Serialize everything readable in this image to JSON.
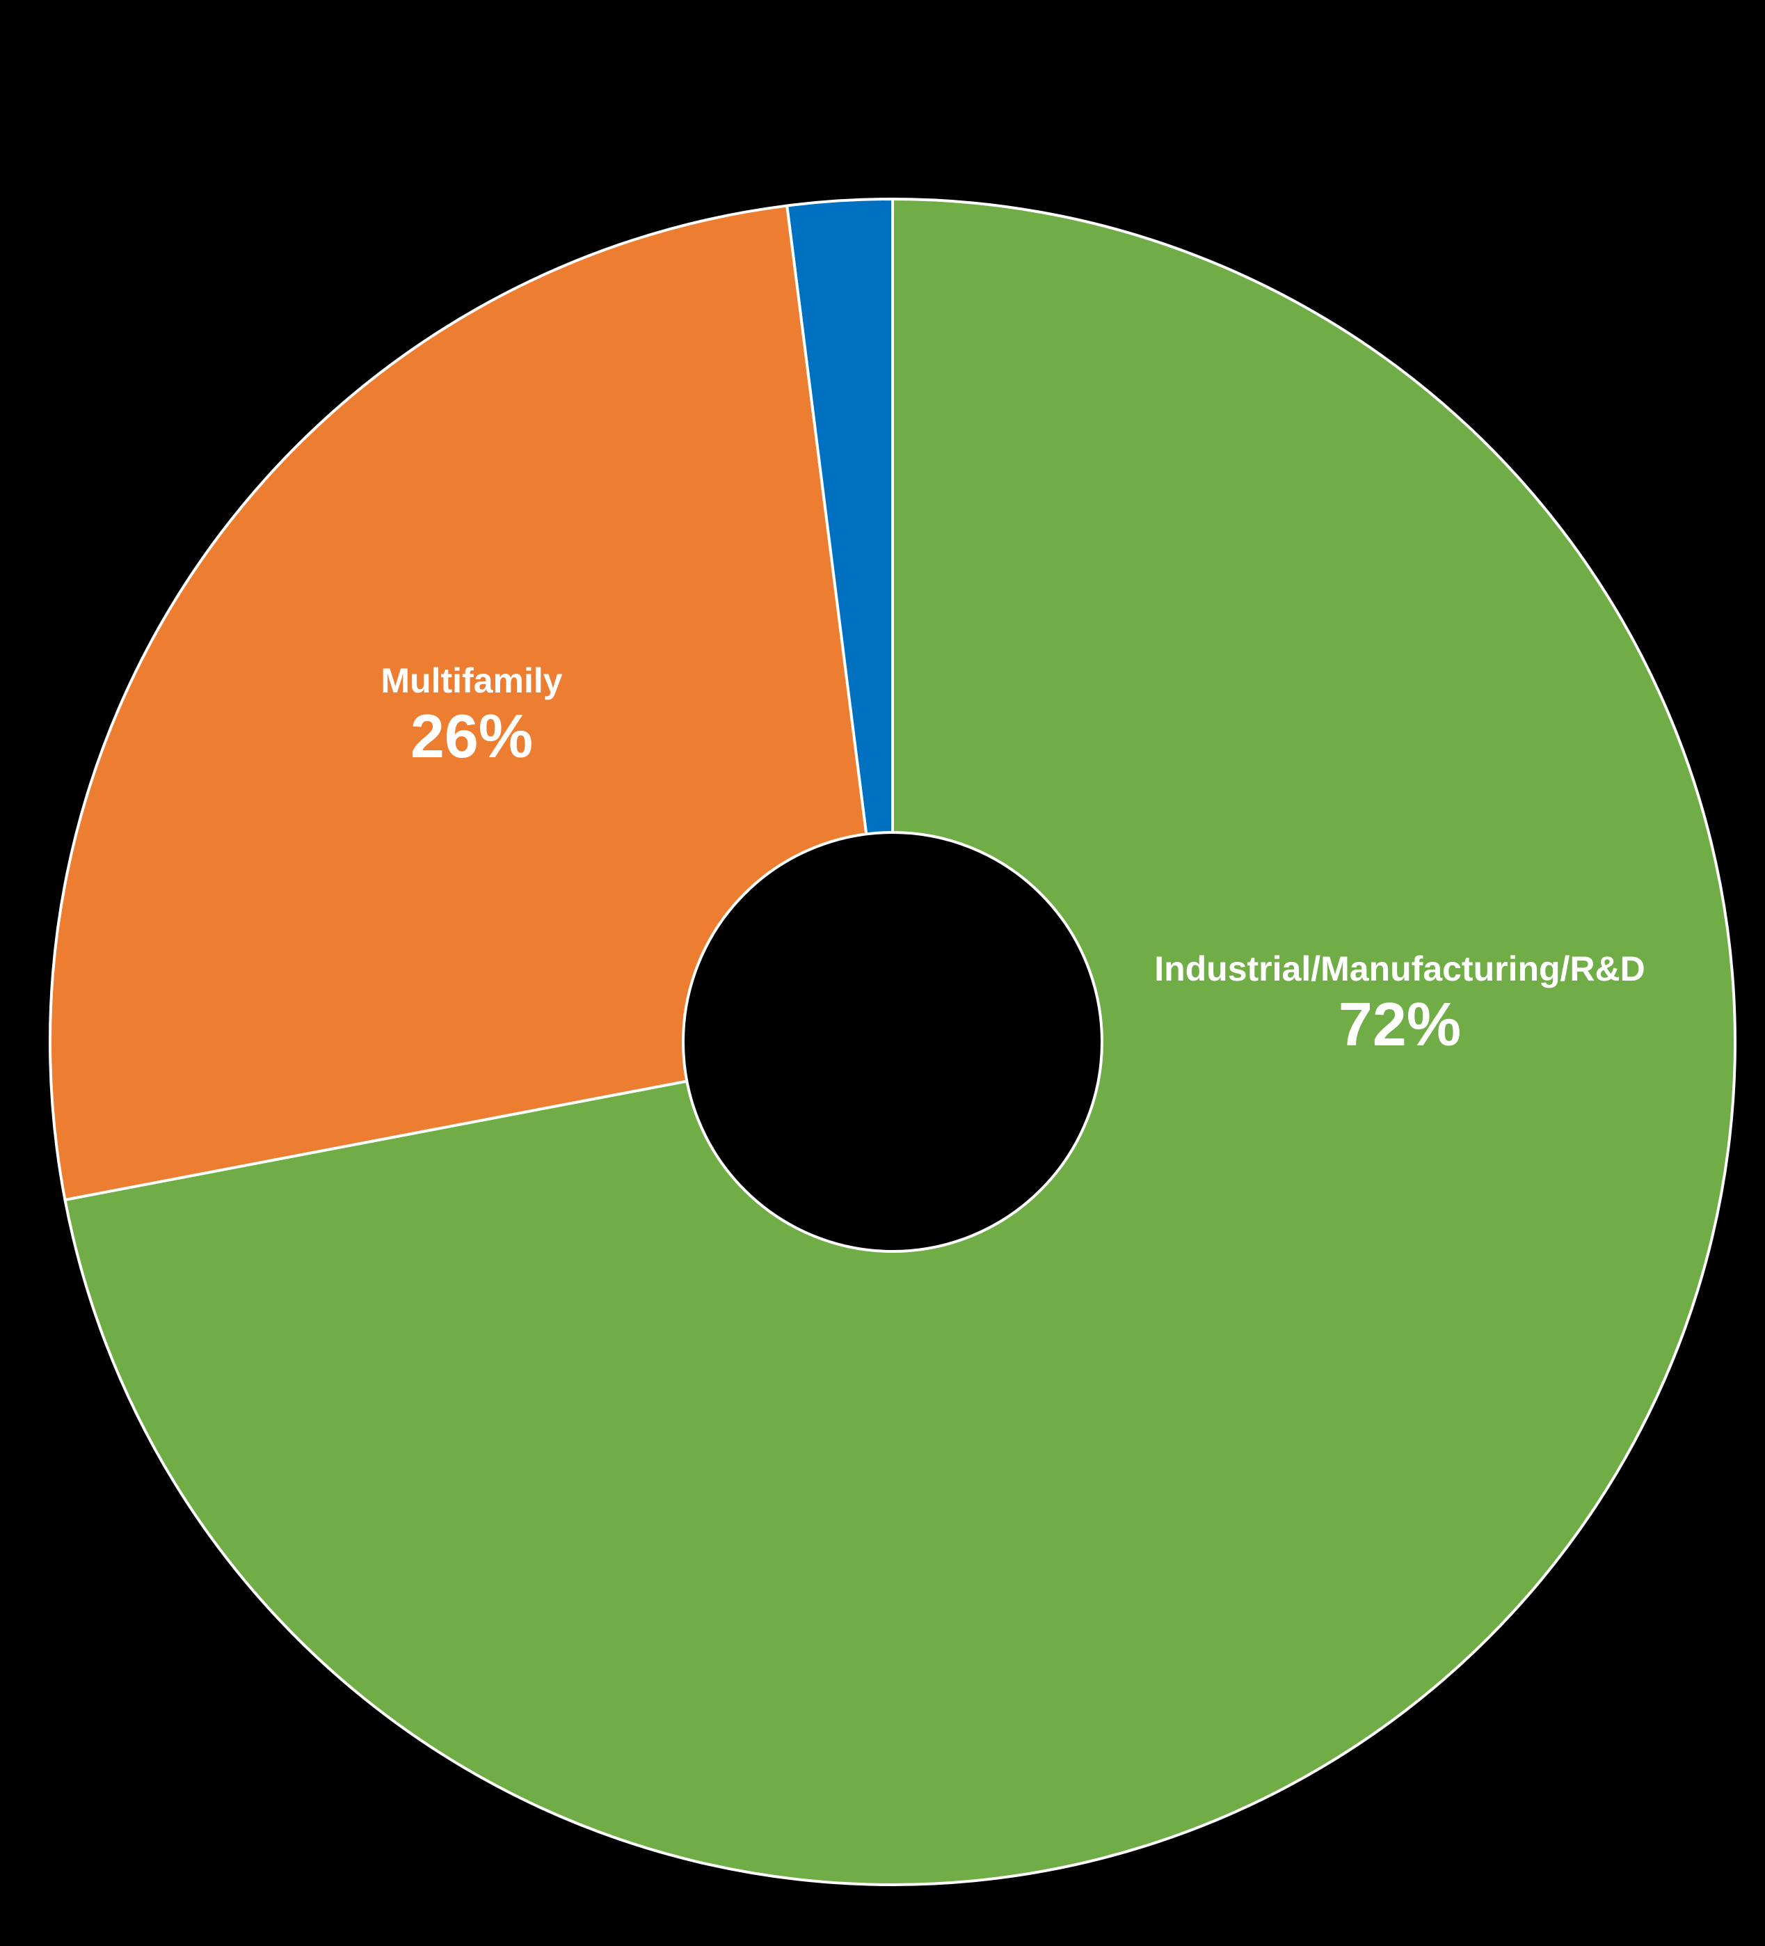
{
  "chart_data": {
    "type": "pie",
    "subtype": "doughnut",
    "title": "",
    "legend": "none",
    "slices": [
      {
        "label": "Industrial/Manufacturing/R&D",
        "value": 72,
        "display": "72%",
        "color": "#70AD47"
      },
      {
        "label": "Multifamily",
        "value": 26,
        "display": "26%",
        "color": "#ED7D31"
      },
      {
        "label": "",
        "value": 2,
        "display": "",
        "color": "#0070C0"
      }
    ],
    "start_angle_deg": 0,
    "direction": "clockwise",
    "background": "#000000",
    "border_color": "#FFFFFF"
  },
  "labels": {
    "industrial": {
      "name": "Industrial/Manufacturing/R&D",
      "pct": "72%"
    },
    "multifamily": {
      "name": "Multifamily",
      "pct": "26%"
    }
  }
}
